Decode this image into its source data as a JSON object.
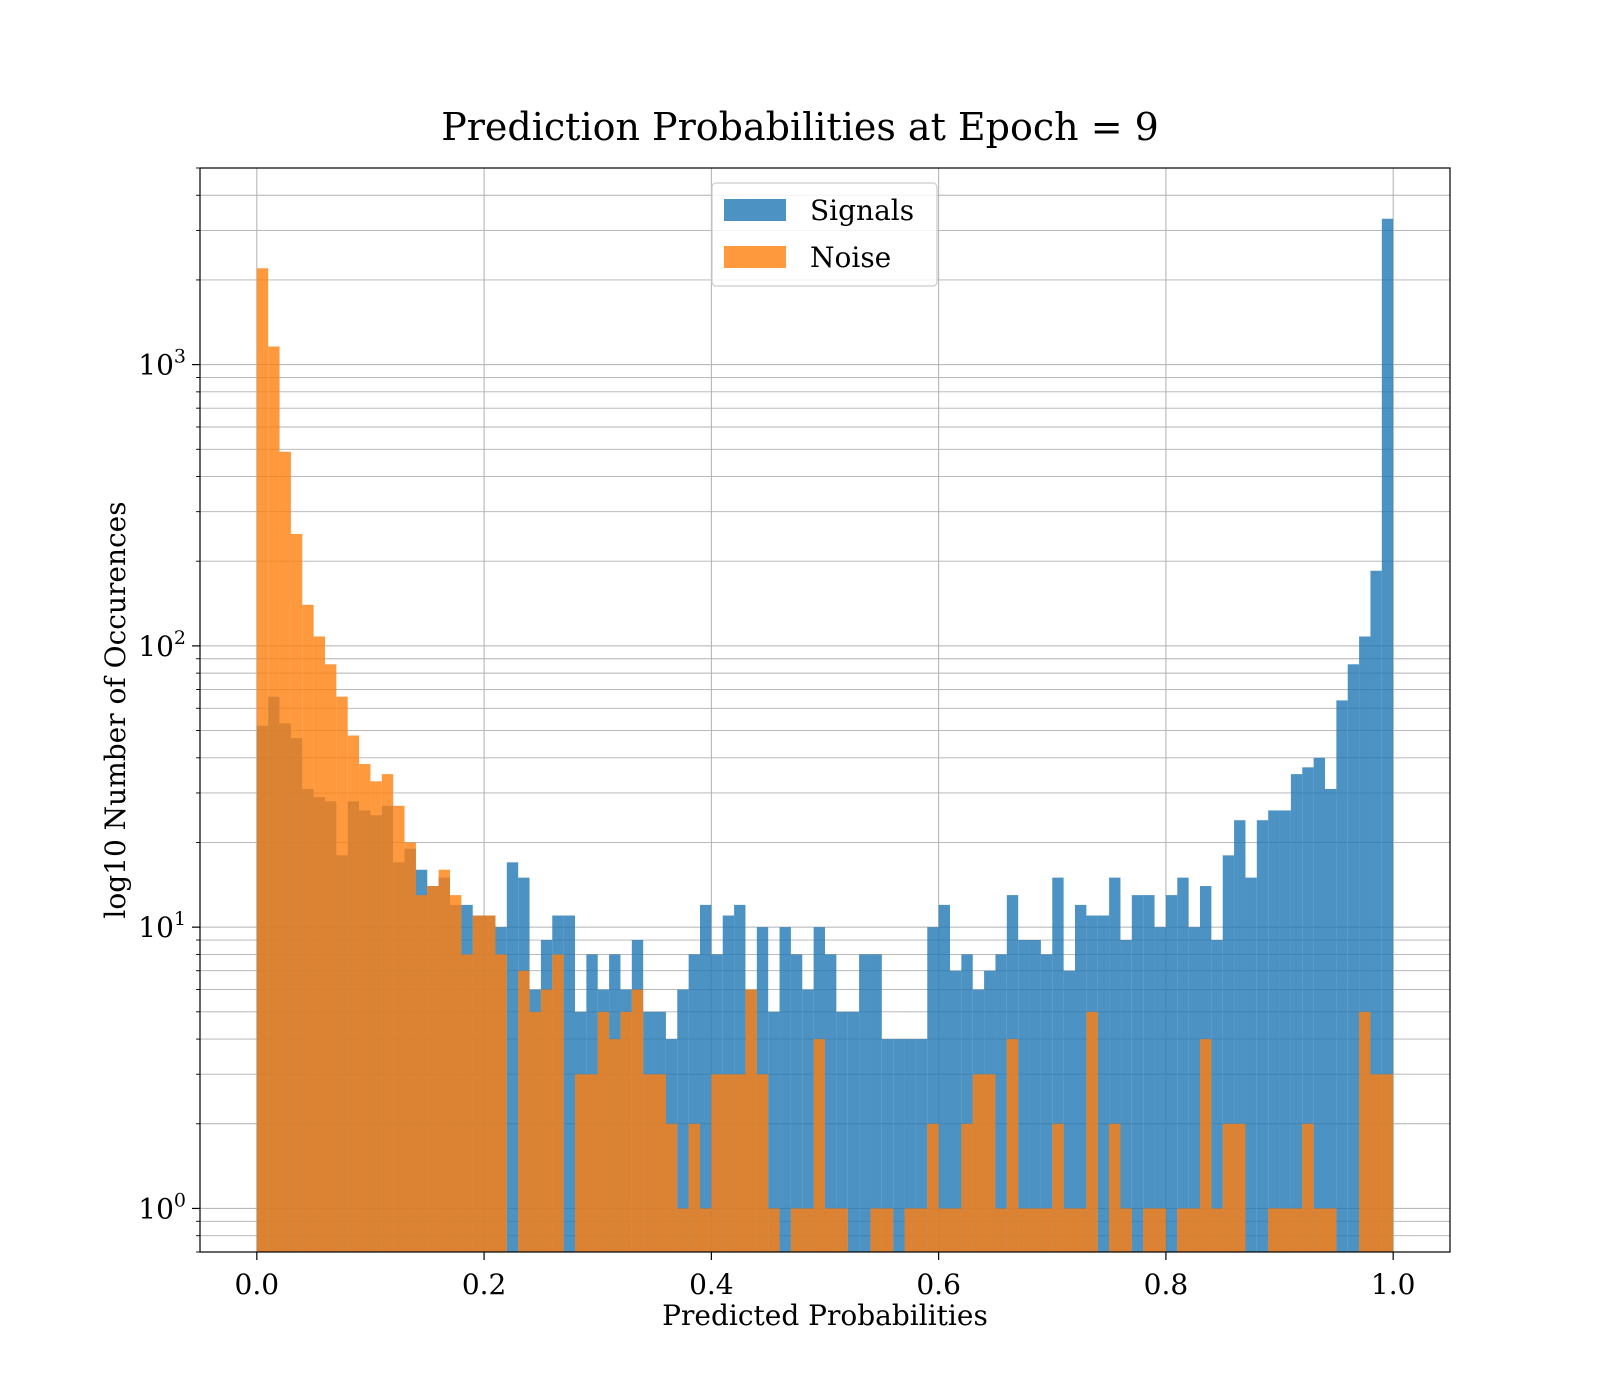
{
  "chart_data": {
    "type": "bar",
    "title": "Prediction Probabilities at Epoch = 9",
    "xlabel": "Predicted Probabilities",
    "ylabel": "log10 Number of Occurences",
    "xlim": [
      -0.05,
      1.05
    ],
    "ylim": [
      0.7,
      5000
    ],
    "yscale": "log",
    "grid": true,
    "legend_position": "top-center",
    "x_ticks": [
      {
        "value": 0.0,
        "label": "0.0"
      },
      {
        "value": 0.2,
        "label": "0.2"
      },
      {
        "value": 0.4,
        "label": "0.4"
      },
      {
        "value": 0.6,
        "label": "0.6"
      },
      {
        "value": 0.8,
        "label": "0.8"
      },
      {
        "value": 1.0,
        "label": "1.0"
      }
    ],
    "y_ticks": [
      {
        "value": 1,
        "base": "10",
        "exp": "0"
      },
      {
        "value": 10,
        "base": "10",
        "exp": "1"
      },
      {
        "value": 100,
        "base": "10",
        "exp": "2"
      },
      {
        "value": 1000,
        "base": "10",
        "exp": "3"
      }
    ],
    "bin_start": 0.0,
    "bin_width": 0.01,
    "series": [
      {
        "name": "Signals",
        "color": "#1f77b4",
        "opacity": 0.8,
        "values": [
          52,
          66,
          53,
          47,
          31,
          29,
          28,
          18,
          28,
          26,
          25,
          27,
          17,
          19,
          16,
          14,
          15,
          12,
          12,
          11,
          11,
          10,
          17,
          15,
          6,
          9,
          11,
          11,
          5,
          8,
          6,
          8,
          6,
          9,
          5,
          5,
          4,
          6,
          8,
          12,
          8,
          11,
          12,
          6,
          10,
          5,
          10,
          8,
          6,
          10,
          8,
          5,
          5,
          8,
          8,
          4,
          4,
          4,
          4,
          10,
          12,
          7,
          8,
          6,
          7,
          8,
          13,
          9,
          9,
          8,
          15,
          7,
          12,
          11,
          11,
          15,
          9,
          13,
          13,
          10,
          13,
          15,
          10,
          14,
          9,
          18,
          24,
          15,
          24,
          26,
          26,
          35,
          37,
          40,
          31,
          64,
          86,
          108,
          185,
          3300
        ]
      },
      {
        "name": "Noise",
        "color": "#ff7f0e",
        "opacity": 0.8,
        "values": [
          2200,
          1160,
          490,
          250,
          140,
          108,
          86,
          66,
          48,
          38,
          33,
          35,
          27,
          20,
          13,
          14,
          16,
          13,
          8,
          11,
          11,
          8,
          0,
          7,
          5,
          6,
          8,
          0,
          3,
          3,
          5,
          4,
          5,
          6,
          3,
          3,
          2,
          1,
          2,
          1,
          3,
          3,
          3,
          6,
          3,
          1,
          0,
          1,
          1,
          4,
          1,
          1,
          0,
          0,
          1,
          1,
          0,
          1,
          1,
          2,
          1,
          1,
          2,
          3,
          3,
          1,
          4,
          1,
          1,
          1,
          2,
          1,
          1,
          5,
          0,
          2,
          1,
          0,
          1,
          1,
          0,
          1,
          1,
          4,
          1,
          2,
          2,
          0,
          0,
          1,
          1,
          1,
          2,
          1,
          1,
          0,
          0,
          5,
          3,
          3
        ]
      }
    ]
  }
}
